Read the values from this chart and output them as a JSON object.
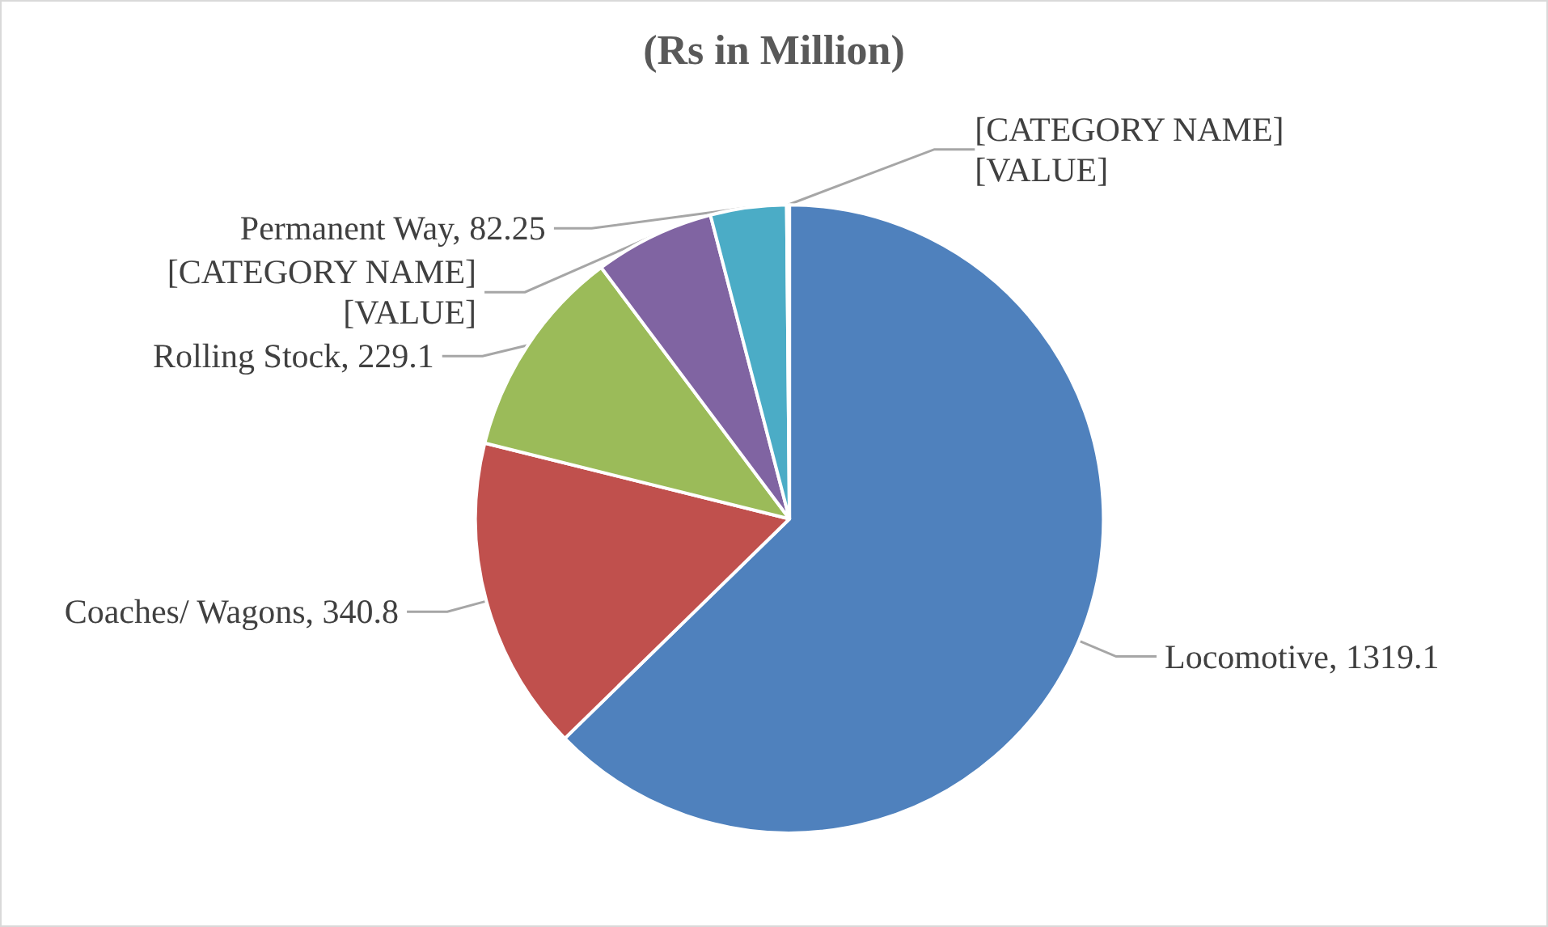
{
  "chart_data": {
    "type": "pie",
    "title": "(Rs in Million)",
    "categories": [
      "Locomotive",
      "Coaches/ Wagons",
      "Rolling Stock",
      "[CATEGORY NAME]",
      "Permanent Way",
      "[CATEGORY NAME]"
    ],
    "values": [
      1319.1,
      340.8,
      229.1,
      130,
      82.25,
      3
    ],
    "colors": [
      "#4f81bd",
      "#c0504d",
      "#9bbb59",
      "#8064a2",
      "#4bacc6",
      "#f79646"
    ],
    "value_labels": [
      "1319.1",
      "340.8",
      "229.1",
      "[VALUE]",
      "82.25",
      "[VALUE]"
    ],
    "legend": false
  }
}
